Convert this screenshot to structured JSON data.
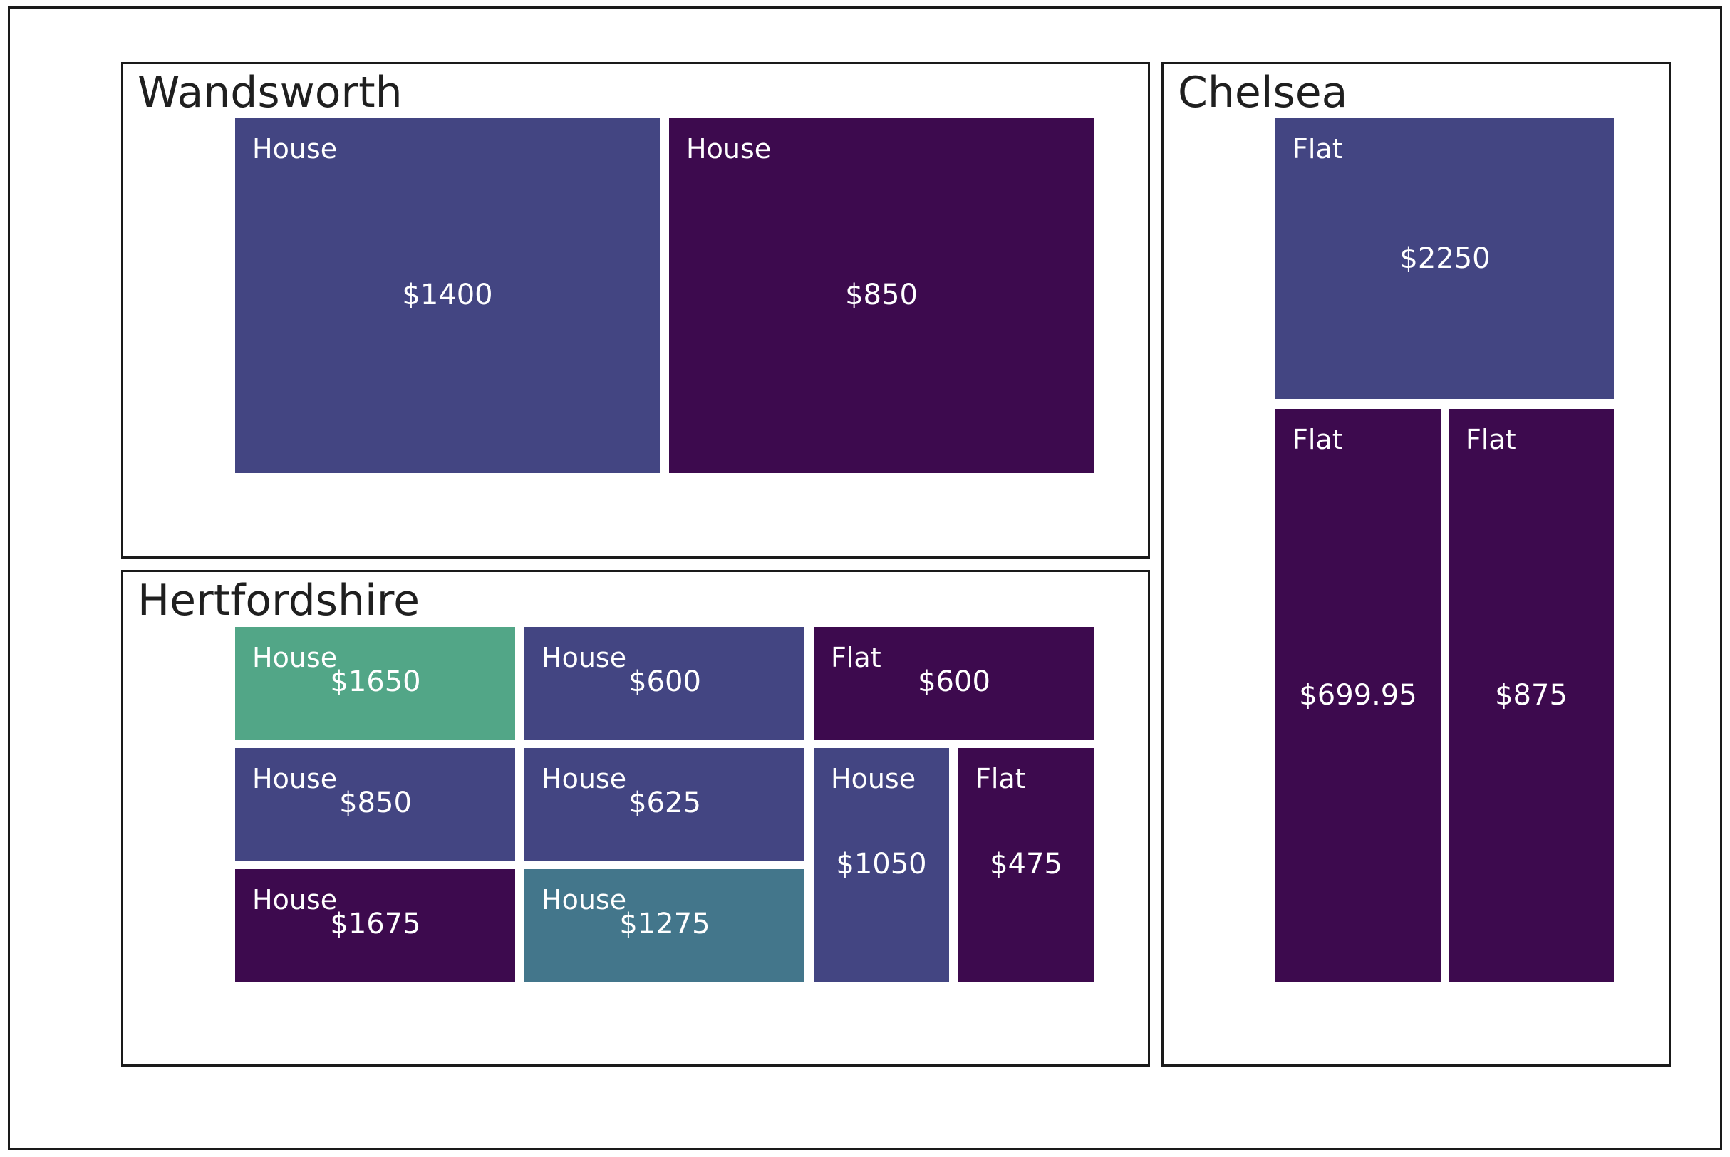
{
  "chart_data": {
    "type": "treemap",
    "colors": {
      "purple": "#3d0a4e",
      "blue": "#434582",
      "teal": "#43768b",
      "green": "#52a687"
    },
    "regions": [
      {
        "name": "Wandsworth",
        "items": [
          {
            "type": "House",
            "price": 1400,
            "label": "$1400",
            "color": "#434582"
          },
          {
            "type": "House",
            "price": 850,
            "label": "$850",
            "color": "#3d0a4e"
          }
        ]
      },
      {
        "name": "Hertfordshire",
        "items": [
          {
            "type": "House",
            "price": 1650,
            "label": "$1650",
            "color": "#52a687"
          },
          {
            "type": "House",
            "price": 600,
            "label": "$600",
            "color": "#434582"
          },
          {
            "type": "Flat",
            "price": 600,
            "label": "$600",
            "color": "#3d0a4e"
          },
          {
            "type": "House",
            "price": 850,
            "label": "$850",
            "color": "#434582"
          },
          {
            "type": "House",
            "price": 625,
            "label": "$625",
            "color": "#434582"
          },
          {
            "type": "House",
            "price": 1050,
            "label": "$1050",
            "color": "#434582"
          },
          {
            "type": "Flat",
            "price": 475,
            "label": "$475",
            "color": "#3d0a4e"
          },
          {
            "type": "House",
            "price": 1675,
            "label": "$1675",
            "color": "#3d0a4e"
          },
          {
            "type": "House",
            "price": 1275,
            "label": "$1275",
            "color": "#43768b"
          }
        ]
      },
      {
        "name": "Chelsea",
        "items": [
          {
            "type": "Flat",
            "price": 2250,
            "label": "$2250",
            "color": "#434582"
          },
          {
            "type": "Flat",
            "price": 699.95,
            "label": "$699.95",
            "color": "#3d0a4e"
          },
          {
            "type": "Flat",
            "price": 875,
            "label": "$875",
            "color": "#3d0a4e"
          }
        ]
      }
    ]
  }
}
